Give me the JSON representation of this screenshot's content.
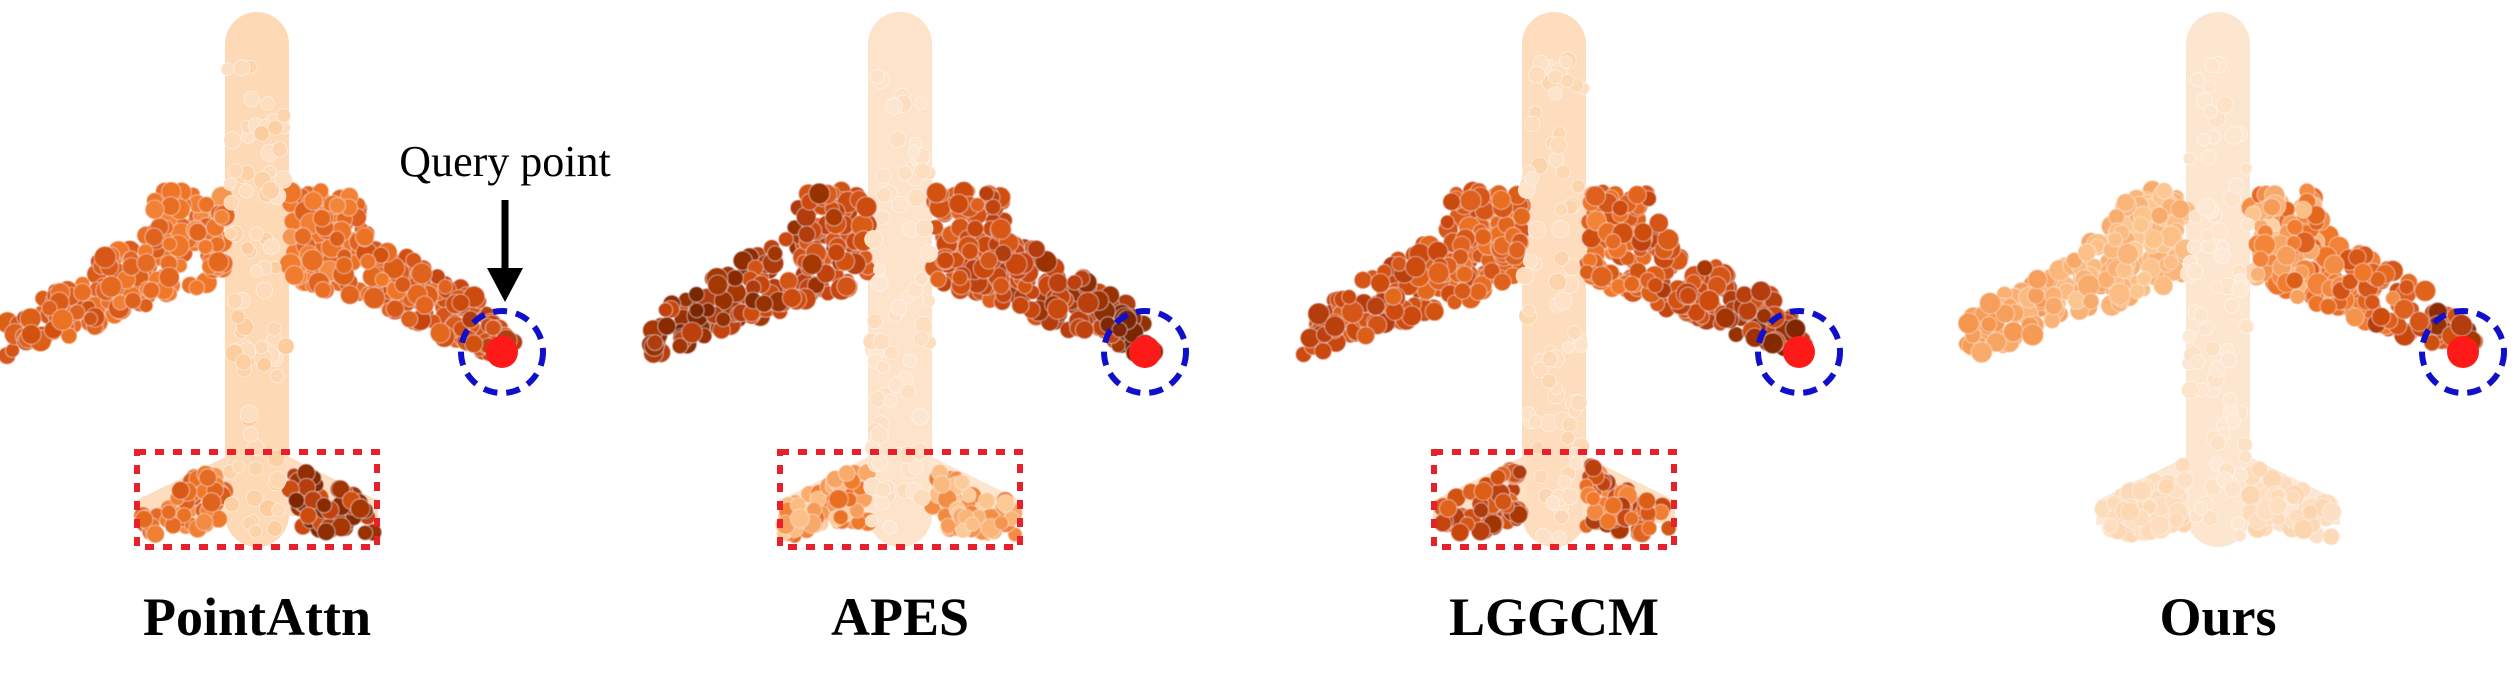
{
  "panels": [
    {
      "label": "PointAttn",
      "bodyHeat": 0.15,
      "leftWingHeat": [
        0.45,
        0.78
      ],
      "rightWingHeat": [
        0.45,
        0.85
      ],
      "leftTailHeat": [
        0.45,
        0.7
      ],
      "rightTailHeat": [
        0.75,
        1.0
      ],
      "showTail": true,
      "highlightTail": true
    },
    {
      "label": "APES",
      "bodyHeat": 0.08,
      "leftWingHeat": [
        0.65,
        1.0
      ],
      "rightWingHeat": [
        0.6,
        1.0
      ],
      "leftTailHeat": [
        0.25,
        0.6
      ],
      "rightTailHeat": [
        0.25,
        0.55
      ],
      "showTail": true,
      "highlightTail": true
    },
    {
      "label": "LGGCM",
      "bodyHeat": 0.12,
      "leftWingHeat": [
        0.55,
        0.85
      ],
      "rightWingHeat": [
        0.5,
        0.98
      ],
      "leftTailHeat": [
        0.65,
        0.9
      ],
      "rightTailHeat": [
        0.5,
        0.9
      ],
      "showTail": true,
      "highlightTail": true
    },
    {
      "label": "Ours",
      "bodyHeat": 0.06,
      "leftWingHeat": [
        0.25,
        0.45
      ],
      "rightWingHeat": [
        0.2,
        0.95
      ],
      "leftTailHeat": [
        0.1,
        0.18
      ],
      "rightTailHeat": [
        0.1,
        0.18
      ],
      "showTail": true,
      "highlightTail": false
    }
  ],
  "annotation": {
    "text": "Query point"
  },
  "colors": {
    "query_point": "#ff1a1a",
    "query_circle": "#1010cc",
    "tail_box": "#e8202a",
    "heat_low": "#fdeee0",
    "heat_high": "#7a2500"
  }
}
